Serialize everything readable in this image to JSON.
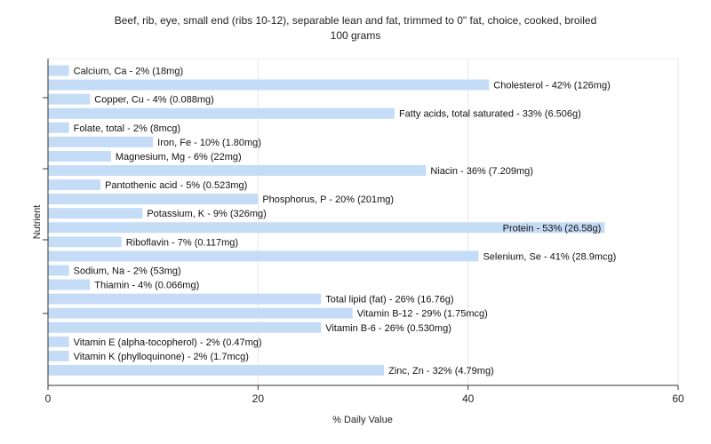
{
  "chart_data": {
    "type": "bar",
    "orientation": "horizontal",
    "title_lines": [
      "Beef, rib, eye, small end (ribs 10-12), separable lean and fat, trimmed to 0\" fat, choice, cooked, broiled",
      "100 grams"
    ],
    "xlabel": "% Daily Value",
    "ylabel": "Nutrient",
    "xlim": [
      0,
      60
    ],
    "xticks": [
      0,
      20,
      40,
      60
    ],
    "grid": true,
    "bar_color": "#c5dcf7",
    "bars": [
      {
        "label": "Calcium, Ca - 2% (18mg)",
        "value": 2
      },
      {
        "label": "Cholesterol - 42% (126mg)",
        "value": 42
      },
      {
        "label": "Copper, Cu - 4% (0.088mg)",
        "value": 4
      },
      {
        "label": "Fatty acids, total saturated - 33% (6.506g)",
        "value": 33
      },
      {
        "label": "Folate, total - 2% (8mcg)",
        "value": 2
      },
      {
        "label": "Iron, Fe - 10% (1.80mg)",
        "value": 10
      },
      {
        "label": "Magnesium, Mg - 6% (22mg)",
        "value": 6
      },
      {
        "label": "Niacin - 36% (7.209mg)",
        "value": 36
      },
      {
        "label": "Pantothenic acid - 5% (0.523mg)",
        "value": 5
      },
      {
        "label": "Phosphorus, P - 20% (201mg)",
        "value": 20
      },
      {
        "label": "Potassium, K - 9% (326mg)",
        "value": 9
      },
      {
        "label": "Protein - 53% (26.58g)",
        "value": 53
      },
      {
        "label": "Riboflavin - 7% (0.117mg)",
        "value": 7
      },
      {
        "label": "Selenium, Se - 41% (28.9mcg)",
        "value": 41
      },
      {
        "label": "Sodium, Na - 2% (53mg)",
        "value": 2
      },
      {
        "label": "Thiamin - 4% (0.066mg)",
        "value": 4
      },
      {
        "label": "Total lipid (fat) - 26% (16.76g)",
        "value": 26
      },
      {
        "label": "Vitamin B-12 - 29% (1.75mcg)",
        "value": 29
      },
      {
        "label": "Vitamin B-6 - 26% (0.530mg)",
        "value": 26
      },
      {
        "label": "Vitamin E (alpha-tocopherol) - 2% (0.47mg)",
        "value": 2
      },
      {
        "label": "Vitamin K (phylloquinone) - 2% (1.7mcg)",
        "value": 2
      },
      {
        "label": "Zinc, Zn - 32% (4.79mg)",
        "value": 32
      }
    ]
  }
}
